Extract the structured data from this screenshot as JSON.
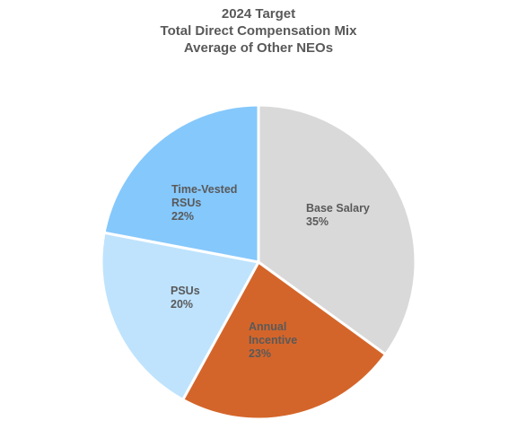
{
  "chart_data": {
    "type": "pie",
    "title_lines": [
      "2024 Target",
      "Total Direct Compensation Mix",
      "Average of Other NEOs"
    ],
    "slices": [
      {
        "label_lines": [
          "Base Salary"
        ],
        "percent_label": "35%",
        "value": 35,
        "color": "#d9d9d9",
        "label_color": "#595959"
      },
      {
        "label_lines": [
          "Annual",
          "Incentive"
        ],
        "percent_label": "23%",
        "value": 23,
        "color": "#d4652a",
        "label_color": "#595959"
      },
      {
        "label_lines": [
          "PSUs"
        ],
        "percent_label": "20%",
        "value": 20,
        "color": "#bfe3fd",
        "label_color": "#595959"
      },
      {
        "label_lines": [
          "Time-Vested",
          "RSUs"
        ],
        "percent_label": "22%",
        "value": 22,
        "color": "#85c8fc",
        "label_color": "#595959"
      }
    ]
  }
}
